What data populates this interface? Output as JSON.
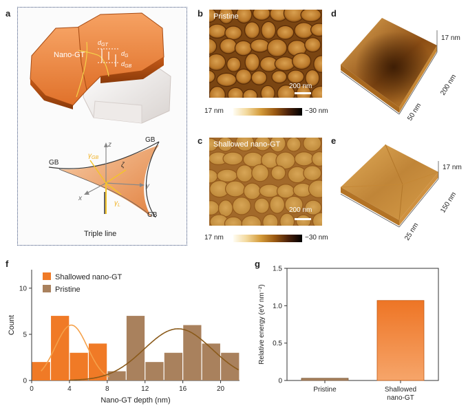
{
  "panel_letters": {
    "a": "a",
    "b": "b",
    "c": "c",
    "d": "d",
    "e": "e",
    "f": "f",
    "g": "g"
  },
  "panel_a": {
    "grain_label": "Nano-GT",
    "d_gt": "d",
    "d_gt_sub": "GT",
    "d_g": "d",
    "d_g_sub": "G",
    "d_gb": "d",
    "d_gb_sub": "GB",
    "axis_z": "z",
    "axis_y": "y",
    "axis_x": "x",
    "gb_labels": [
      "GB",
      "GB",
      "GB"
    ],
    "gamma_gb": "γ",
    "gamma_gb_sub": "GB",
    "gamma_l": "γ",
    "gamma_l_sub": "L",
    "zeta": "ζ",
    "caption": "Triple line"
  },
  "panel_b": {
    "title": "Pristine",
    "scale": "200 nm",
    "cbar_left": "17 nm",
    "cbar_right": "−30 nm"
  },
  "panel_c": {
    "title": "Shallowed nano-GT",
    "scale": "200 nm",
    "cbar_left": "17 nm",
    "cbar_right": "−30 nm"
  },
  "panel_d": {
    "z_label": "17 nm",
    "axis1": "200 nm",
    "axis2": "50 nm"
  },
  "panel_e": {
    "z_label": "17 nm",
    "axis1": "150 nm",
    "axis2": "25 nm"
  },
  "chart_data": [
    {
      "type": "bar",
      "panel": "f",
      "xlabel": "Nano-GT depth (nm)",
      "ylabel": "Count",
      "xlim": [
        0,
        22
      ],
      "ylim": [
        0,
        12
      ],
      "xticks": [
        "0",
        "4",
        "8",
        "12",
        "16",
        "20"
      ],
      "yticks": [
        "0",
        "5",
        "10"
      ],
      "legend_position": "top-left",
      "series": [
        {
          "name": "Shallowed nano-GT",
          "color": "#f07a26",
          "bins": [
            [
              0,
              2
            ],
            [
              2,
              4
            ],
            [
              4,
              6
            ],
            [
              6,
              8
            ]
          ],
          "values": [
            2,
            7,
            3,
            4
          ],
          "fit": {
            "mean": 4.2,
            "peak": 6.0,
            "sigma": 1.7,
            "color": "#f5a14a"
          }
        },
        {
          "name": "Pristine",
          "color": "#a9815d",
          "bins": [
            [
              8,
              10
            ],
            [
              10,
              12
            ],
            [
              12,
              14
            ],
            [
              14,
              16
            ],
            [
              16,
              18
            ],
            [
              18,
              20
            ],
            [
              20,
              22
            ]
          ],
          "values": [
            1,
            7,
            2,
            3,
            6,
            4,
            3
          ],
          "fit": {
            "mean": 15.5,
            "peak": 5.6,
            "sigma": 3.6,
            "color": "#8a5a1a"
          }
        }
      ]
    },
    {
      "type": "bar",
      "panel": "g",
      "ylabel": "Relative energy (eV nm⁻²)",
      "ylim": [
        0,
        1.5
      ],
      "yticks": [
        "0",
        "0.5",
        "1.0",
        "1.5"
      ],
      "categories": [
        "Pristine",
        "Shallowed nano-GT"
      ],
      "category_lines": [
        [
          "Pristine"
        ],
        [
          "Shallowed",
          "nano-GT"
        ]
      ],
      "values": [
        0.03,
        1.07
      ],
      "colors": [
        "#a9815d",
        "#f07a26"
      ]
    }
  ]
}
